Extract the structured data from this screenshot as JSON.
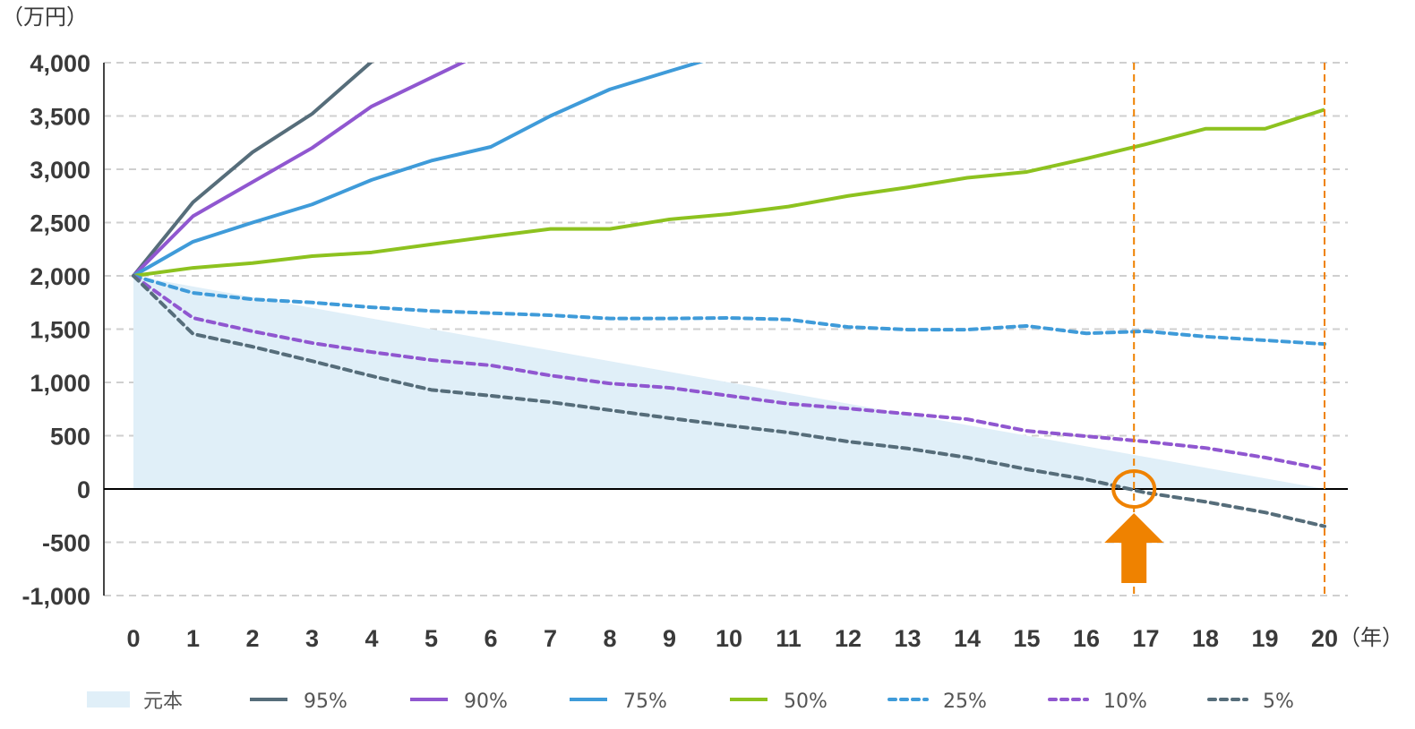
{
  "chart_data": {
    "type": "line",
    "y_unit": "（万円）",
    "x_unit": "（年）",
    "x": [
      0,
      1,
      2,
      3,
      4,
      5,
      6,
      7,
      8,
      9,
      10,
      11,
      12,
      13,
      14,
      15,
      16,
      17,
      18,
      19,
      20
    ],
    "xlim": [
      0,
      20
    ],
    "ylim": [
      -1000,
      4000
    ],
    "y_ticks": [
      4000,
      3500,
      3000,
      2500,
      2000,
      1500,
      1000,
      500,
      0,
      -500,
      -1000
    ],
    "y_tick_labels": [
      "4,000",
      "3,500",
      "3,000",
      "2,500",
      "2,000",
      "1,500",
      "1,000",
      "500",
      "0",
      "-500",
      "-1,000"
    ],
    "x_tick_labels": [
      "0",
      "1",
      "2",
      "3",
      "4",
      "5",
      "6",
      "7",
      "8",
      "9",
      "10",
      "11",
      "12",
      "13",
      "14",
      "15",
      "16",
      "17",
      "18",
      "19",
      "20"
    ],
    "grid": true,
    "legend_position": "bottom",
    "area": {
      "name": "元本",
      "color": "#e0eff8",
      "values": [
        2000,
        1900,
        1800,
        1700,
        1600,
        1500,
        1400,
        1300,
        1200,
        1100,
        1000,
        900,
        800,
        700,
        600,
        500,
        400,
        300,
        200,
        100,
        0
      ]
    },
    "series": [
      {
        "name": "95%",
        "color": "#566d7a",
        "dash": false,
        "values": [
          2000,
          2690,
          3160,
          3520,
          4010,
          null,
          null,
          null,
          null,
          null,
          null,
          null,
          null,
          null,
          null,
          null,
          null,
          null,
          null,
          null,
          null
        ]
      },
      {
        "name": "90%",
        "color": "#9057d0",
        "dash": false,
        "values": [
          2000,
          2560,
          2880,
          3200,
          3590,
          3860,
          null,
          null,
          null,
          null,
          null,
          null,
          null,
          null,
          null,
          null,
          null,
          null,
          null,
          null,
          null
        ]
      },
      {
        "name": "75%",
        "color": "#3f9bd9",
        "dash": false,
        "values": [
          2000,
          2320,
          2500,
          2670,
          2900,
          3080,
          3210,
          3500,
          3750,
          3920,
          null,
          null,
          null,
          null,
          null,
          null,
          null,
          null,
          null,
          null,
          null
        ]
      },
      {
        "name": "50%",
        "color": "#8dc21f",
        "dash": false,
        "values": [
          2000,
          2075,
          2120,
          2185,
          2220,
          2295,
          2370,
          2440,
          2440,
          2530,
          2580,
          2650,
          2750,
          2830,
          2920,
          2975,
          3100,
          3235,
          3380,
          3380,
          3560
        ]
      },
      {
        "name": "25%",
        "color": "#3f9bd9",
        "dash": true,
        "values": [
          2000,
          1840,
          1780,
          1750,
          1705,
          1670,
          1650,
          1630,
          1600,
          1600,
          1605,
          1590,
          1520,
          1495,
          1495,
          1530,
          1460,
          1480,
          1430,
          1395,
          1360
        ]
      },
      {
        "name": "10%",
        "color": "#9057d0",
        "dash": true,
        "values": [
          2000,
          1605,
          1480,
          1370,
          1285,
          1210,
          1160,
          1065,
          990,
          950,
          875,
          800,
          755,
          705,
          655,
          545,
          495,
          445,
          385,
          295,
          185
        ]
      },
      {
        "name": "5%",
        "color": "#566d7a",
        "dash": true,
        "values": [
          2000,
          1455,
          1335,
          1200,
          1060,
          930,
          875,
          815,
          740,
          665,
          595,
          530,
          445,
          380,
          295,
          185,
          90,
          -35,
          -120,
          -220,
          -350
        ]
      }
    ],
    "annotations": {
      "color": "#ef8200",
      "vertical_lines_x": [
        16.8,
        20
      ],
      "circle_point": {
        "x": 16.8,
        "y": 0
      },
      "arrow": "up-arrow-icon"
    }
  }
}
